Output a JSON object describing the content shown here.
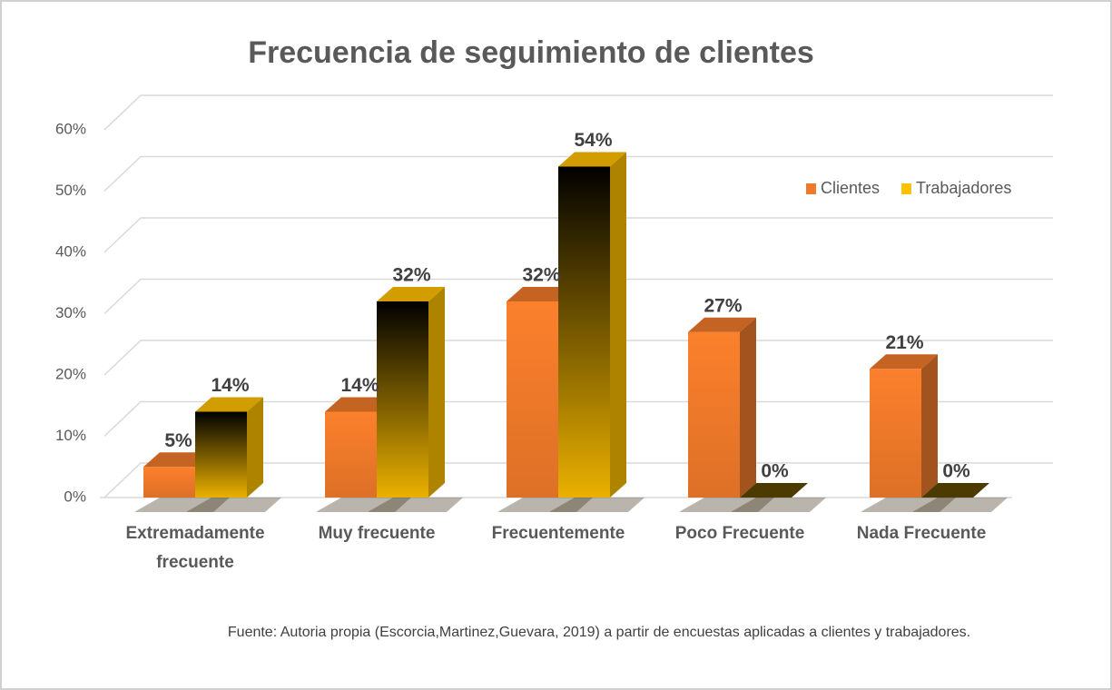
{
  "chart_data": {
    "type": "bar3d",
    "title": "Frecuencia de seguimiento de clientes",
    "categories": [
      "Extremadamente frecuente",
      "Muy frecuente",
      "Frecuentemente",
      "Poco Frecuente",
      "Nada Frecuente"
    ],
    "series": [
      {
        "name": "Clientes",
        "color": "#f07a2a",
        "values": [
          5,
          14,
          32,
          27,
          21
        ],
        "value_labels": [
          "5%",
          "14%",
          "32%",
          "27%",
          "21%"
        ]
      },
      {
        "name": "Trabajadores",
        "color": "#ffc000",
        "values": [
          14,
          32,
          54,
          0,
          0
        ],
        "value_labels": [
          "14%",
          "32%",
          "54%",
          "0%",
          "0%"
        ]
      }
    ],
    "ylim": [
      0,
      60
    ],
    "yticks": [
      {
        "value": 0,
        "label": "0%"
      },
      {
        "value": 10,
        "label": "10%"
      },
      {
        "value": 20,
        "label": "20%"
      },
      {
        "value": 30,
        "label": "30%"
      },
      {
        "value": 40,
        "label": "40%"
      },
      {
        "value": 50,
        "label": "50%"
      },
      {
        "value": 60,
        "label": "60%"
      }
    ],
    "grid": true,
    "legend": "upper right",
    "note": "Fuente: Autoria propia (Escorcia,Martinez,Guevara, 2019) a partir de encuestas aplicadas a clientes y trabajadores."
  }
}
